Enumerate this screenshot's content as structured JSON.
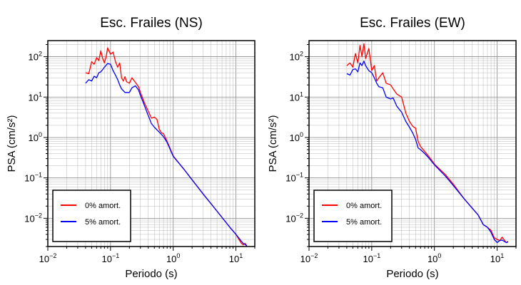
{
  "chart_data": [
    {
      "type": "line",
      "title": "Esc. Frailes (NS)",
      "xlabel": "Periodo (s)",
      "ylabel": "PSA (cm/s²)",
      "xscale": "log",
      "yscale": "log",
      "xlim": [
        0.01,
        20
      ],
      "ylim": [
        0.002,
        250
      ],
      "grid": true,
      "legend_position": "bottom-left",
      "x_ticks": [
        {
          "base": "10",
          "exp": "−2"
        },
        {
          "base": "10",
          "exp": "−1"
        },
        {
          "base": "10",
          "exp": "0"
        },
        {
          "base": "10",
          "exp": "1"
        }
      ],
      "y_ticks": [
        {
          "base": "10",
          "exp": "−2"
        },
        {
          "base": "10",
          "exp": "−1"
        },
        {
          "base": "10",
          "exp": "0"
        },
        {
          "base": "10",
          "exp": "1"
        },
        {
          "base": "10",
          "exp": "2"
        }
      ],
      "series": [
        {
          "name": "0% amort.",
          "color": "#ff0000",
          "points": [
            [
              0.04,
              40
            ],
            [
              0.045,
              38
            ],
            [
              0.05,
              75
            ],
            [
              0.055,
              65
            ],
            [
              0.06,
              95
            ],
            [
              0.065,
              80
            ],
            [
              0.07,
              140
            ],
            [
              0.075,
              90
            ],
            [
              0.08,
              70
            ],
            [
              0.085,
              100
            ],
            [
              0.09,
              165
            ],
            [
              0.1,
              115
            ],
            [
              0.11,
              130
            ],
            [
              0.12,
              75
            ],
            [
              0.13,
              55
            ],
            [
              0.14,
              70
            ],
            [
              0.15,
              30
            ],
            [
              0.16,
              25
            ],
            [
              0.17,
              32
            ],
            [
              0.18,
              24
            ],
            [
              0.2,
              22
            ],
            [
              0.22,
              30
            ],
            [
              0.25,
              23
            ],
            [
              0.28,
              18
            ],
            [
              0.3,
              13
            ],
            [
              0.35,
              7
            ],
            [
              0.4,
              4.5
            ],
            [
              0.45,
              3
            ],
            [
              0.5,
              3.2
            ],
            [
              0.55,
              2.8
            ],
            [
              0.6,
              1.6
            ],
            [
              0.65,
              1.3
            ],
            [
              0.7,
              1.25
            ],
            [
              0.8,
              0.8
            ],
            [
              1.0,
              0.35
            ],
            [
              1.5,
              0.16
            ],
            [
              2,
              0.09
            ],
            [
              3,
              0.04
            ],
            [
              5,
              0.015
            ],
            [
              8,
              0.006
            ],
            [
              10,
              0.004
            ],
            [
              12,
              0.0025
            ],
            [
              13,
              0.0022
            ],
            [
              14,
              0.0024
            ],
            [
              15,
              0.002
            ]
          ]
        },
        {
          "name": "5% amort.",
          "color": "#0000ff",
          "points": [
            [
              0.04,
              22
            ],
            [
              0.045,
              27
            ],
            [
              0.05,
              25
            ],
            [
              0.055,
              33
            ],
            [
              0.06,
              30
            ],
            [
              0.065,
              40
            ],
            [
              0.07,
              42
            ],
            [
              0.075,
              48
            ],
            [
              0.08,
              55
            ],
            [
              0.09,
              68
            ],
            [
              0.1,
              65
            ],
            [
              0.11,
              45
            ],
            [
              0.12,
              35
            ],
            [
              0.13,
              27
            ],
            [
              0.14,
              20
            ],
            [
              0.15,
              16
            ],
            [
              0.17,
              13
            ],
            [
              0.2,
              13
            ],
            [
              0.22,
              17
            ],
            [
              0.25,
              19
            ],
            [
              0.28,
              15
            ],
            [
              0.3,
              11
            ],
            [
              0.35,
              6
            ],
            [
              0.4,
              3.5
            ],
            [
              0.45,
              2.2
            ],
            [
              0.5,
              1.8
            ],
            [
              0.6,
              1.35
            ],
            [
              0.7,
              1.05
            ],
            [
              0.8,
              0.75
            ],
            [
              1.0,
              0.34
            ],
            [
              1.5,
              0.16
            ],
            [
              2,
              0.09
            ],
            [
              3,
              0.04
            ],
            [
              5,
              0.015
            ],
            [
              8,
              0.006
            ],
            [
              10,
              0.004
            ],
            [
              12,
              0.0028
            ],
            [
              13,
              0.0024
            ],
            [
              15,
              0.0021
            ]
          ]
        }
      ]
    },
    {
      "type": "line",
      "title": "Esc. Frailes (EW)",
      "xlabel": "Periodo (s)",
      "ylabel": "PSA (cm/s²)",
      "xscale": "log",
      "yscale": "log",
      "xlim": [
        0.01,
        20
      ],
      "ylim": [
        0.002,
        250
      ],
      "grid": true,
      "legend_position": "bottom-left",
      "x_ticks": [
        {
          "base": "10",
          "exp": "−2"
        },
        {
          "base": "10",
          "exp": "−1"
        },
        {
          "base": "10",
          "exp": "0"
        },
        {
          "base": "10",
          "exp": "1"
        }
      ],
      "y_ticks": [
        {
          "base": "10",
          "exp": "−2"
        },
        {
          "base": "10",
          "exp": "−1"
        },
        {
          "base": "10",
          "exp": "0"
        },
        {
          "base": "10",
          "exp": "1"
        },
        {
          "base": "10",
          "exp": "2"
        }
      ],
      "series": [
        {
          "name": "0% amort.",
          "color": "#ff0000",
          "points": [
            [
              0.04,
              60
            ],
            [
              0.045,
              70
            ],
            [
              0.05,
              55
            ],
            [
              0.055,
              120
            ],
            [
              0.06,
              70
            ],
            [
              0.065,
              190
            ],
            [
              0.07,
              100
            ],
            [
              0.075,
              210
            ],
            [
              0.08,
              90
            ],
            [
              0.09,
              160
            ],
            [
              0.1,
              45
            ],
            [
              0.11,
              60
            ],
            [
              0.12,
              25
            ],
            [
              0.13,
              30
            ],
            [
              0.15,
              40
            ],
            [
              0.17,
              22
            ],
            [
              0.2,
              20
            ],
            [
              0.22,
              16
            ],
            [
              0.25,
              12
            ],
            [
              0.3,
              10
            ],
            [
              0.35,
              4
            ],
            [
              0.4,
              2.5
            ],
            [
              0.45,
              1.9
            ],
            [
              0.5,
              1.7
            ],
            [
              0.55,
              0.8
            ],
            [
              0.6,
              0.6
            ],
            [
              0.7,
              0.45
            ],
            [
              0.8,
              0.35
            ],
            [
              1.0,
              0.22
            ],
            [
              1.5,
              0.12
            ],
            [
              2,
              0.07
            ],
            [
              3,
              0.03
            ],
            [
              5,
              0.012
            ],
            [
              6,
              0.007
            ],
            [
              7,
              0.006
            ],
            [
              8,
              0.005
            ],
            [
              9,
              0.0033
            ],
            [
              10,
              0.003
            ],
            [
              11,
              0.0028
            ],
            [
              12,
              0.0034
            ],
            [
              14,
              0.0025
            ],
            [
              15,
              0.0027
            ]
          ]
        },
        {
          "name": "5% amort.",
          "color": "#0000ff",
          "points": [
            [
              0.04,
              38
            ],
            [
              0.045,
              35
            ],
            [
              0.05,
              48
            ],
            [
              0.055,
              50
            ],
            [
              0.06,
              42
            ],
            [
              0.065,
              70
            ],
            [
              0.07,
              60
            ],
            [
              0.075,
              78
            ],
            [
              0.08,
              60
            ],
            [
              0.09,
              45
            ],
            [
              0.1,
              40
            ],
            [
              0.11,
              30
            ],
            [
              0.12,
              22
            ],
            [
              0.13,
              18
            ],
            [
              0.15,
              17
            ],
            [
              0.17,
              10
            ],
            [
              0.2,
              9
            ],
            [
              0.22,
              9.5
            ],
            [
              0.25,
              6
            ],
            [
              0.3,
              4.2
            ],
            [
              0.35,
              2.5
            ],
            [
              0.4,
              1.8
            ],
            [
              0.45,
              1.3
            ],
            [
              0.5,
              0.9
            ],
            [
              0.55,
              0.55
            ],
            [
              0.6,
              0.5
            ],
            [
              0.7,
              0.4
            ],
            [
              0.8,
              0.32
            ],
            [
              1.0,
              0.21
            ],
            [
              1.5,
              0.11
            ],
            [
              2,
              0.065
            ],
            [
              3,
              0.03
            ],
            [
              5,
              0.012
            ],
            [
              6,
              0.007
            ],
            [
              7,
              0.006
            ],
            [
              8,
              0.0045
            ],
            [
              9,
              0.003
            ],
            [
              10,
              0.0025
            ],
            [
              11,
              0.0028
            ],
            [
              12,
              0.0029
            ],
            [
              14,
              0.0025
            ],
            [
              15,
              0.0026
            ]
          ]
        }
      ]
    }
  ]
}
